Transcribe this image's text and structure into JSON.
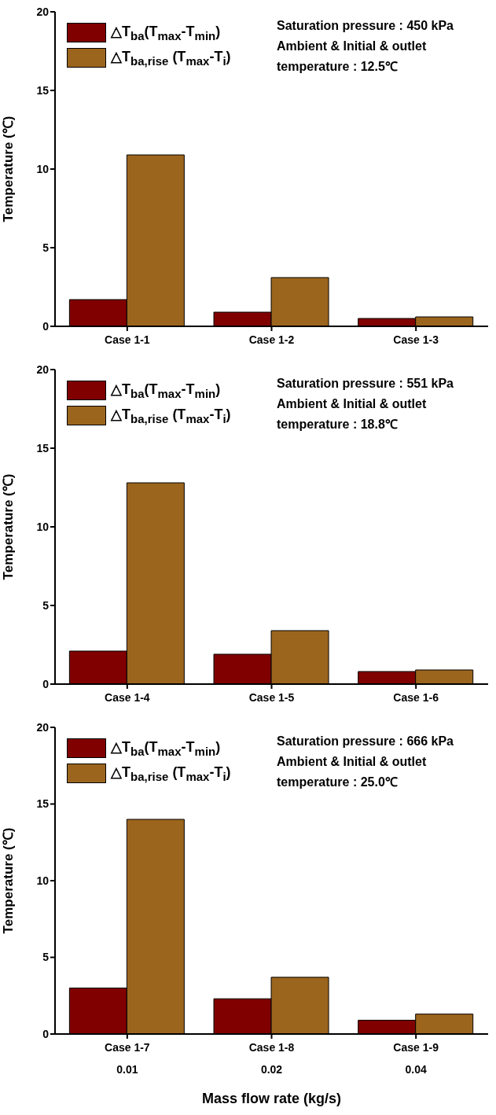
{
  "chart_data": [
    {
      "type": "bar",
      "ylabel": "Temperature (℃)",
      "categories": [
        "Case 1-1",
        "Case 1-2",
        "Case 1-3"
      ],
      "series": [
        {
          "name": "△T$_{ba}$(T$_{max}$-T$_{min}$)",
          "color": "#800000",
          "values": [
            1.7,
            0.9,
            0.5
          ]
        },
        {
          "name": "△T$_{ba,rise}$ (T$_{max}$-T$_{i}$)",
          "color": "#9c651d",
          "values": [
            10.9,
            3.1,
            0.6
          ]
        }
      ],
      "ylim": [
        0,
        20
      ],
      "yticks": [
        0,
        5,
        10,
        15,
        20
      ],
      "grid": false,
      "legend": "top left",
      "annotations": [
        "Saturation pressure : 450 kPa",
        "Ambient & Initial & outlet",
        "temperature : 12.5℃"
      ]
    },
    {
      "type": "bar",
      "ylabel": "Temperature (℃)",
      "categories": [
        "Case 1-4",
        "Case 1-5",
        "Case 1-6"
      ],
      "series": [
        {
          "name": "△T$_{ba}$(T$_{max}$-T$_{min}$)",
          "color": "#800000",
          "values": [
            2.1,
            1.9,
            0.8
          ]
        },
        {
          "name": "△T$_{ba,rise}$ (T$_{max}$-T$_{i}$)",
          "color": "#9c651d",
          "values": [
            12.8,
            3.4,
            0.9
          ]
        }
      ],
      "ylim": [
        0,
        20
      ],
      "yticks": [
        0,
        5,
        10,
        15,
        20
      ],
      "grid": false,
      "legend": "top left",
      "annotations": [
        "Saturation pressure : 551 kPa",
        "Ambient & Initial & outlet",
        "temperature : 18.8℃"
      ]
    },
    {
      "type": "bar",
      "ylabel": "Temperature (℃)",
      "xlabel": "Mass flow rate (kg/s)",
      "categories": [
        "Case 1-7\n0.01",
        "Case 1-8\n0.02",
        "Case 1-9\n0.04"
      ],
      "series": [
        {
          "name": "△T$_{ba}$(T$_{max}$-T$_{min}$)",
          "color": "#800000",
          "values": [
            3.0,
            2.3,
            0.9
          ]
        },
        {
          "name": "△T$_{ba,rise}$ (T$_{max}$-T$_{i}$)",
          "color": "#9c651d",
          "values": [
            14.0,
            3.7,
            1.3
          ]
        }
      ],
      "ylim": [
        0,
        20
      ],
      "yticks": [
        0,
        5,
        10,
        15,
        20
      ],
      "grid": false,
      "legend": "top left",
      "annotations": [
        "Saturation pressure : 666 kPa",
        "Ambient & Initial & outlet",
        "temperature : 25.0℃"
      ]
    }
  ]
}
